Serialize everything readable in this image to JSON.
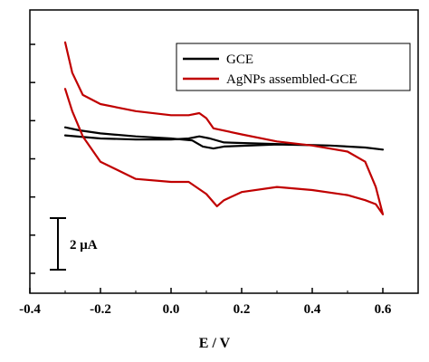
{
  "chart_data": {
    "type": "line",
    "xlabel": "E / V",
    "ylabel": "",
    "xlim": [
      -0.4,
      0.7
    ],
    "x_ticks": [
      "-0.4",
      "-0.2",
      "0.0",
      "0.2",
      "0.4",
      "0.6"
    ],
    "ylim": [
      -15,
      13
    ],
    "y_ticks_count": 7,
    "legend_position": "top-right",
    "scale_bar": {
      "label": "2 μA",
      "value": 2
    },
    "series": [
      {
        "name": "GCE",
        "color": "#000000",
        "x": [
          -0.3,
          -0.2,
          -0.1,
          0.0,
          0.05,
          0.08,
          0.11,
          0.15,
          0.25,
          0.35,
          0.45,
          0.55,
          0.6,
          0.6,
          0.55,
          0.45,
          0.3,
          0.15,
          0.12,
          0.09,
          0.06,
          0.0,
          -0.1,
          -0.2,
          -0.26,
          -0.3
        ],
        "y": [
          0.6,
          0.3,
          0.2,
          0.2,
          0.3,
          0.5,
          0.3,
          -0.1,
          -0.2,
          -0.3,
          -0.4,
          -0.6,
          -0.8,
          -0.8,
          -0.6,
          -0.4,
          -0.3,
          -0.5,
          -0.7,
          -0.5,
          0.1,
          0.3,
          0.5,
          0.8,
          1.1,
          1.4
        ]
      },
      {
        "name": "AgNPs assembled-GCE",
        "color": "#c00000",
        "x": [
          -0.3,
          -0.28,
          -0.25,
          -0.2,
          -0.1,
          0.0,
          0.05,
          0.1,
          0.13,
          0.15,
          0.2,
          0.3,
          0.4,
          0.5,
          0.55,
          0.58,
          0.6,
          0.6,
          0.58,
          0.55,
          0.5,
          0.4,
          0.3,
          0.2,
          0.12,
          0.1,
          0.08,
          0.05,
          0.0,
          -0.1,
          -0.2,
          -0.25,
          -0.28,
          -0.3
        ],
        "y": [
          5.2,
          3.0,
          0.5,
          -2.0,
          -3.7,
          -4.0,
          -4.0,
          -5.2,
          -6.4,
          -5.8,
          -5.0,
          -4.5,
          -4.8,
          -5.3,
          -5.8,
          -6.2,
          -7.2,
          -7.2,
          -4.5,
          -2.0,
          -1.0,
          -0.4,
          0.0,
          0.7,
          1.3,
          2.3,
          2.8,
          2.6,
          2.6,
          3.0,
          3.7,
          4.6,
          6.8,
          9.8
        ]
      }
    ]
  }
}
